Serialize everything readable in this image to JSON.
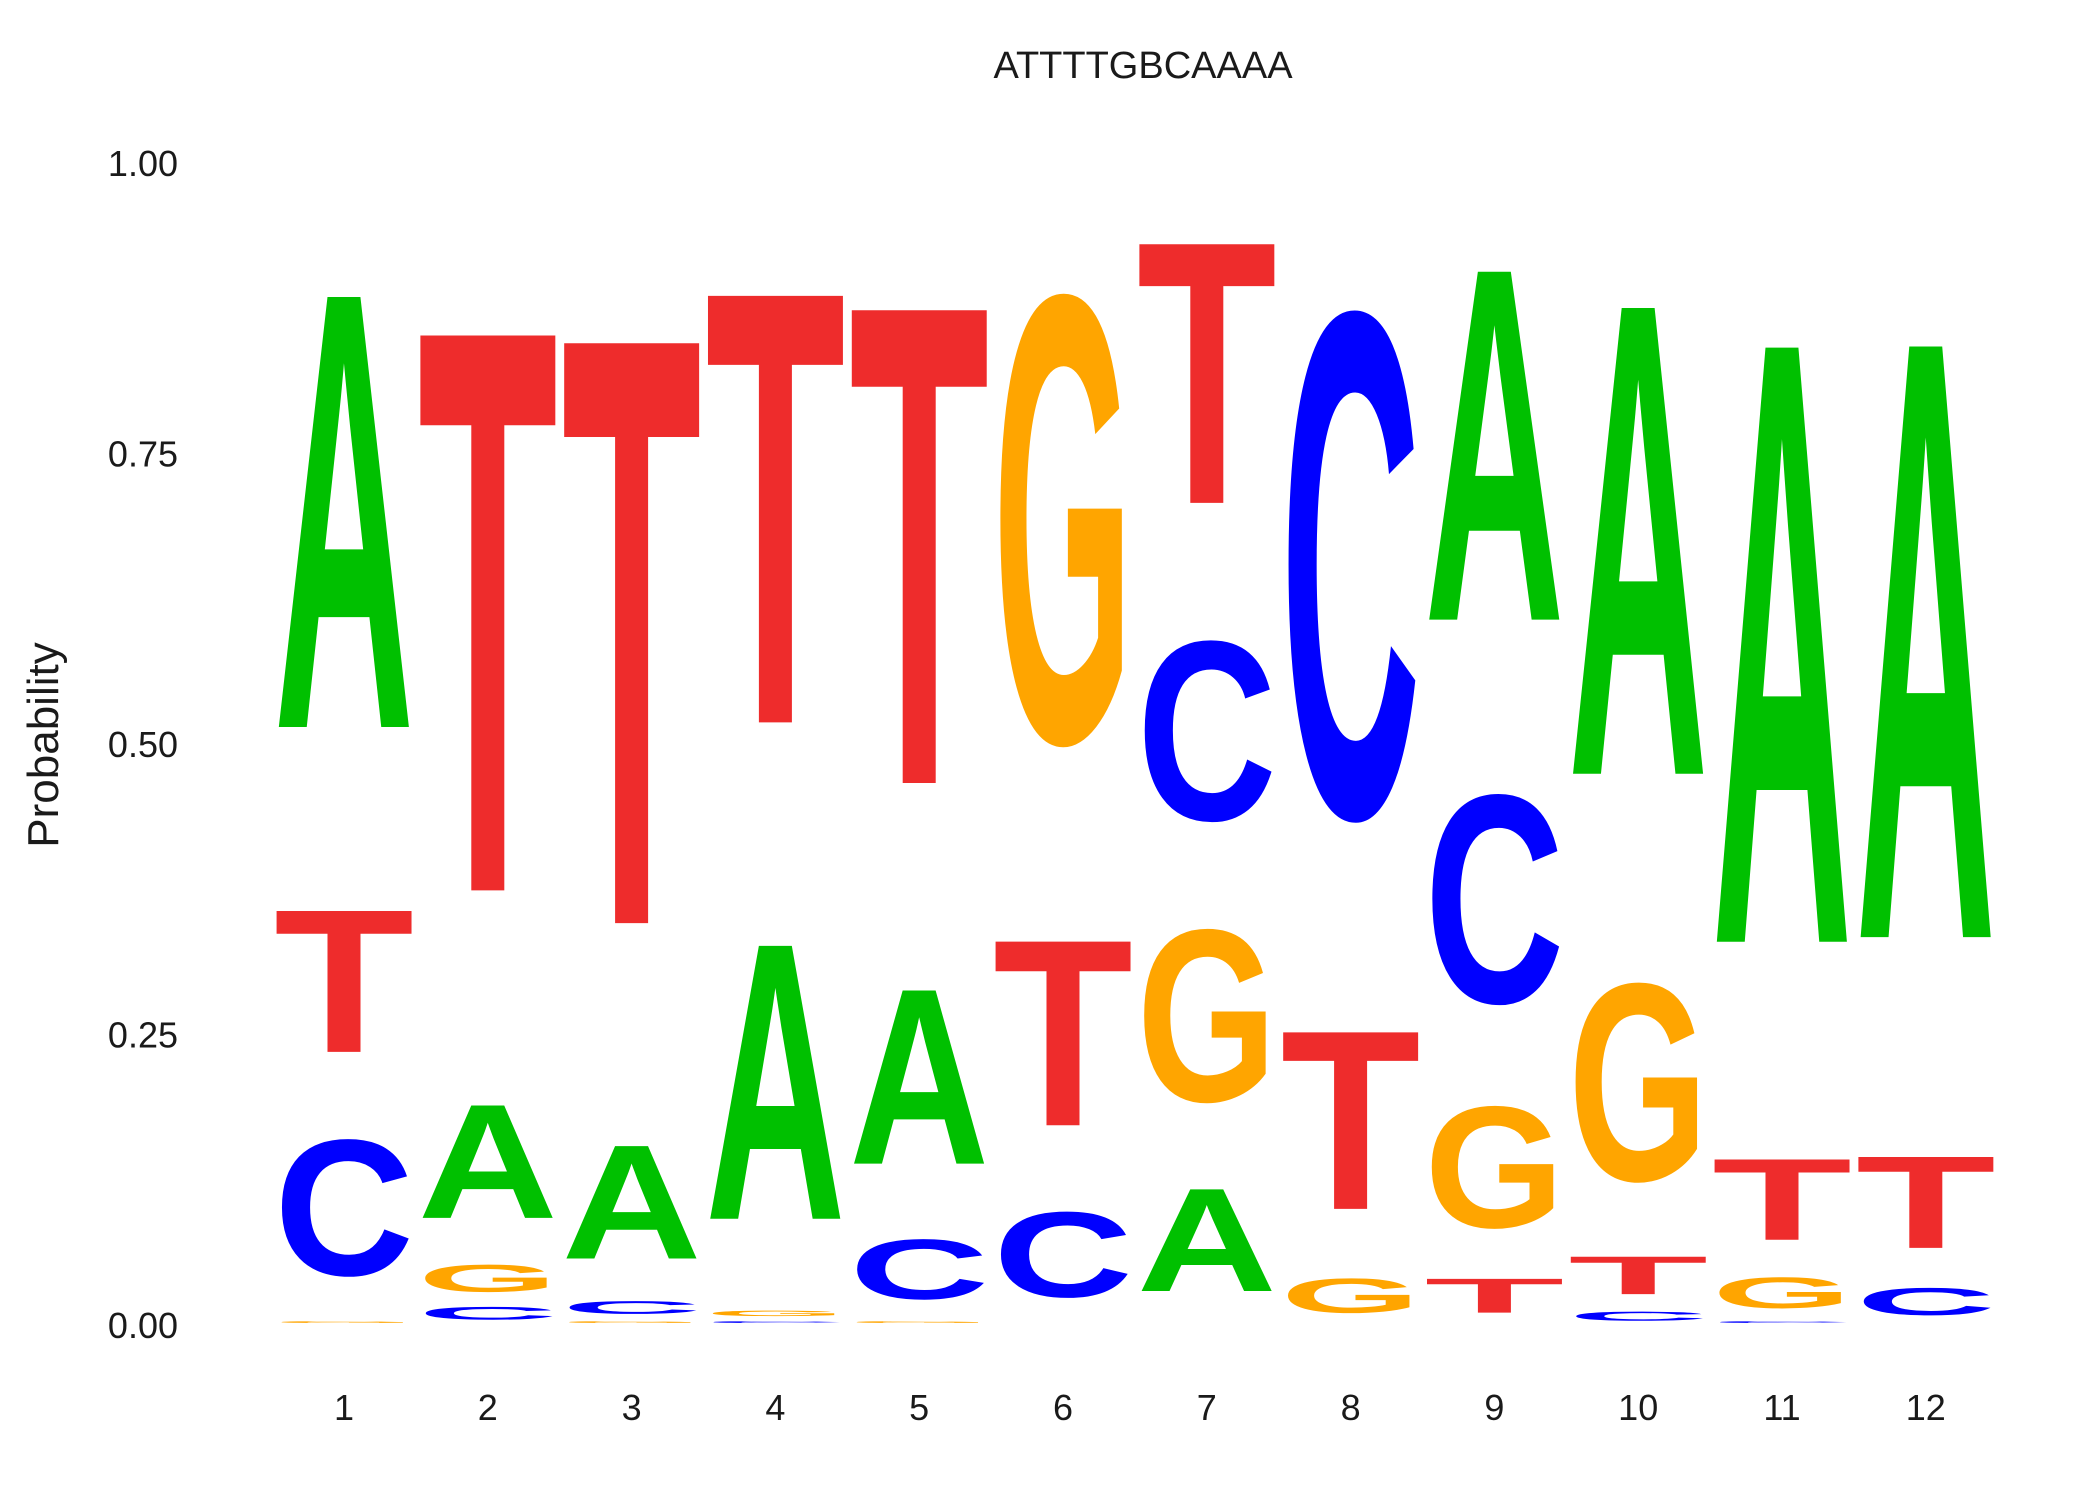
{
  "chart_data": {
    "type": "sequence-logo",
    "title": "ATTTTGBCAAAA",
    "xlabel": "",
    "ylabel": "Probability",
    "ylim": [
      0,
      1
    ],
    "yticks": [
      "0.00",
      "0.25",
      "0.50",
      "0.75",
      "1.00"
    ],
    "grid": false,
    "legend": "none",
    "colors": {
      "A": "#00c000",
      "C": "#0000ff",
      "G": "#ffa500",
      "T": "#ee2c2c"
    },
    "positions": [
      {
        "label": "1",
        "stack": [
          [
            "G",
            0.005
          ],
          [
            "C",
            0.19
          ],
          [
            "T",
            0.2
          ],
          [
            "A",
            0.605
          ]
        ]
      },
      {
        "label": "2",
        "stack": [
          [
            "C",
            0.02
          ],
          [
            "G",
            0.04
          ],
          [
            "A",
            0.16
          ],
          [
            "T",
            0.78
          ]
        ]
      },
      {
        "label": "3",
        "stack": [
          [
            "G",
            0.005
          ],
          [
            "C",
            0.02
          ],
          [
            "A",
            0.16
          ],
          [
            "T",
            0.815
          ]
        ]
      },
      {
        "label": "4",
        "stack": [
          [
            "C",
            0.005
          ],
          [
            "G",
            0.01
          ],
          [
            "A",
            0.385
          ],
          [
            "T",
            0.6
          ]
        ]
      },
      {
        "label": "5",
        "stack": [
          [
            "G",
            0.005
          ],
          [
            "C",
            0.085
          ],
          [
            "A",
            0.245
          ],
          [
            "T",
            0.665
          ]
        ]
      },
      {
        "label": "6",
        "stack": [
          [
            "A",
            0.0
          ],
          [
            "C",
            0.12
          ],
          [
            "T",
            0.26
          ],
          [
            "G",
            0.62
          ]
        ]
      },
      {
        "label": "7",
        "stack": [
          [
            "A",
            0.145
          ],
          [
            "G",
            0.24
          ],
          [
            "C",
            0.25
          ],
          [
            "T",
            0.365
          ]
        ]
      },
      {
        "label": "8",
        "stack": [
          [
            "A",
            0.0
          ],
          [
            "G",
            0.05
          ],
          [
            "T",
            0.25
          ],
          [
            "C",
            0.7
          ]
        ]
      },
      {
        "label": "9",
        "stack": [
          [
            "T",
            0.05
          ],
          [
            "G",
            0.17
          ],
          [
            "C",
            0.29
          ],
          [
            "A",
            0.49
          ]
        ]
      },
      {
        "label": "10",
        "stack": [
          [
            "C",
            0.015
          ],
          [
            "T",
            0.055
          ],
          [
            "G",
            0.275
          ],
          [
            "A",
            0.655
          ]
        ]
      },
      {
        "label": "11",
        "stack": [
          [
            "C",
            0.005
          ],
          [
            "G",
            0.045
          ],
          [
            "T",
            0.115
          ],
          [
            "A",
            0.835
          ]
        ]
      },
      {
        "label": "12",
        "stack": [
          [
            "G",
            0.0
          ],
          [
            "C",
            0.04
          ],
          [
            "T",
            0.13
          ],
          [
            "A",
            0.83
          ]
        ]
      }
    ]
  }
}
